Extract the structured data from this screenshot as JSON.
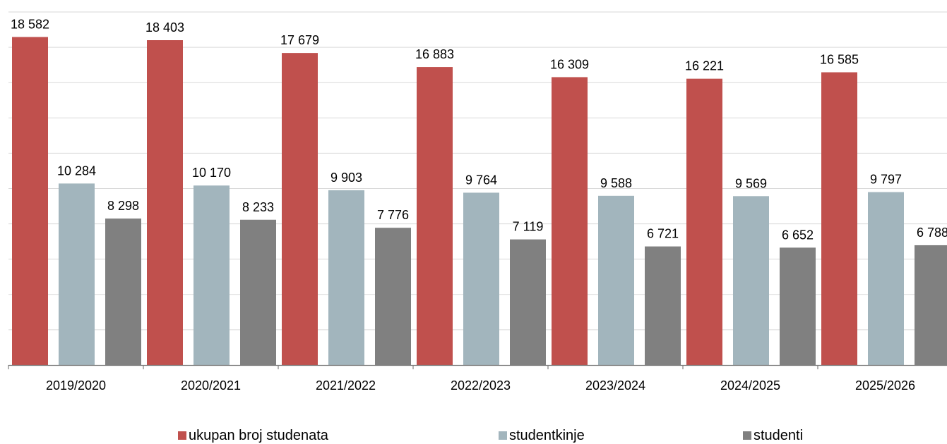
{
  "chart_data": {
    "type": "bar",
    "categories": [
      "2019/2020",
      "2020/2021",
      "2021/2022",
      "2022/2023",
      "2023/2024",
      "2024/2025",
      "2025/2026"
    ],
    "series": [
      {
        "name": "ukupan broj studenata",
        "color": "#c0504d",
        "values": [
          18582,
          18403,
          17679,
          16883,
          16309,
          16221,
          16585
        ],
        "labels": [
          "18 582",
          "18 403",
          "17 679",
          "16 883",
          "16 309",
          "16 221",
          "16 585"
        ]
      },
      {
        "name": "studentkinje",
        "color": "#a2b5bd",
        "values": [
          10284,
          10170,
          9903,
          9764,
          9588,
          9569,
          9797
        ],
        "labels": [
          "10 284",
          "10 170",
          "9 903",
          "9 764",
          "9 588",
          "9 569",
          "9 797"
        ]
      },
      {
        "name": "studenti",
        "color": "#808080",
        "values": [
          8298,
          8233,
          7776,
          7119,
          6721,
          6652,
          6788
        ],
        "labels": [
          "8 298",
          "8 233",
          "7 776",
          "7 119",
          "6 721",
          "6 652",
          "6 788"
        ]
      }
    ],
    "ylim": [
      0,
      20000
    ],
    "grid": true,
    "legend": "bottom"
  }
}
